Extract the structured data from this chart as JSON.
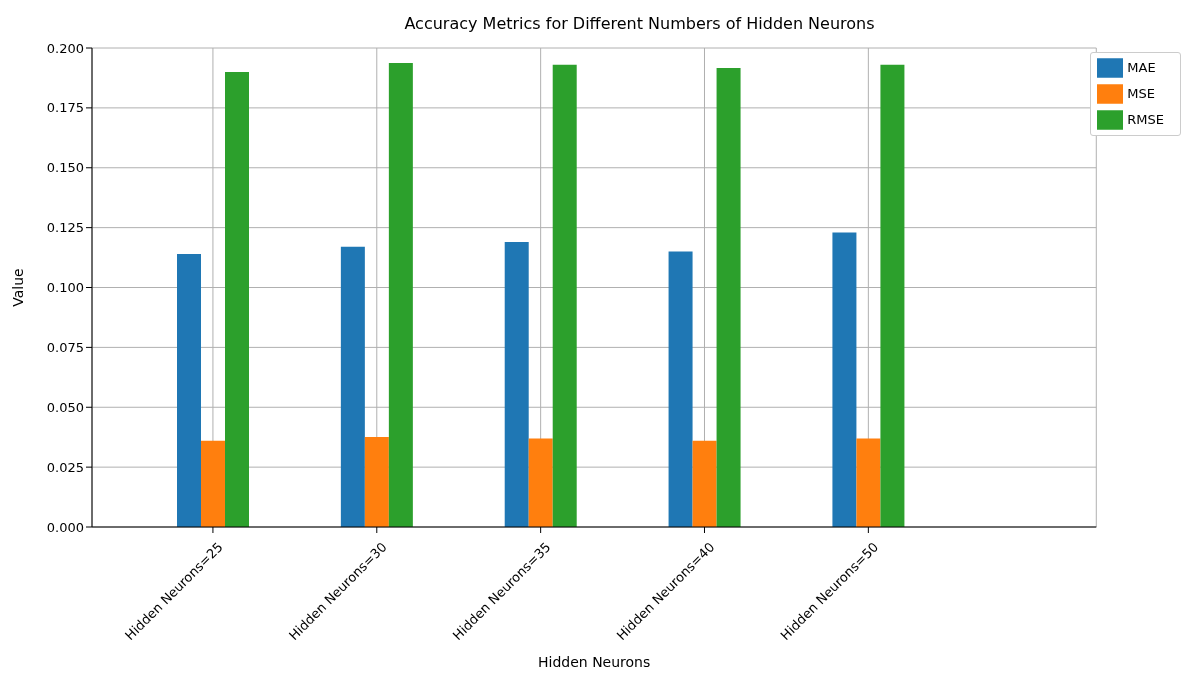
{
  "chart_data": {
    "type": "bar",
    "title": "Accuracy Metrics for Different Numbers of Hidden Neurons",
    "xlabel": "Hidden Neurons",
    "ylabel": "Value",
    "categories": [
      "Hidden Neurons=25",
      "Hidden Neurons=30",
      "Hidden Neurons=35",
      "Hidden Neurons=40",
      "Hidden Neurons=50"
    ],
    "series": [
      {
        "name": "MAE",
        "color": "#1f77b4",
        "values": [
          0.114,
          0.117,
          0.119,
          0.115,
          0.123
        ]
      },
      {
        "name": "MSE",
        "color": "#ff7f0e",
        "values": [
          0.036,
          0.0376,
          0.037,
          0.036,
          0.037
        ]
      },
      {
        "name": "RMSE",
        "color": "#2ca02c",
        "values": [
          0.19,
          0.1937,
          0.193,
          0.1916,
          0.193
        ]
      }
    ],
    "ylim": [
      0,
      0.2
    ],
    "yticks": [
      {
        "value": 0,
        "label": "0.000"
      },
      {
        "value": 0.025,
        "label": "0.025"
      },
      {
        "value": 0.05,
        "label": "0.050"
      },
      {
        "value": 0.075,
        "label": "0.075"
      },
      {
        "value": 0.1,
        "label": "0.100"
      },
      {
        "value": 0.125,
        "label": "0.125"
      },
      {
        "value": 0.15,
        "label": "0.150"
      },
      {
        "value": 0.175,
        "label": "0.175"
      },
      {
        "value": 0.2,
        "label": "0.200"
      }
    ],
    "grid": true,
    "legend": "top right"
  }
}
